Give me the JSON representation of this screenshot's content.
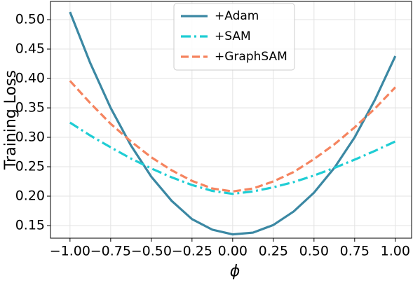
{
  "chart_data": {
    "type": "line",
    "xlabel": "ϕ",
    "ylabel": "Training Loss",
    "x": [
      -1,
      -0.875,
      -0.75,
      -0.625,
      -0.5,
      -0.375,
      -0.25,
      -0.125,
      0,
      0.125,
      0.25,
      0.375,
      0.5,
      0.625,
      0.75,
      0.875,
      1
    ],
    "series": [
      {
        "name": "+Adam",
        "color": "#3b88a3",
        "dash": "solid",
        "values": [
          0.513,
          0.426,
          0.35,
          0.286,
          0.233,
          0.192,
          0.161,
          0.143,
          0.135,
          0.138,
          0.151,
          0.174,
          0.206,
          0.248,
          0.3,
          0.364,
          0.438
        ]
      },
      {
        "name": "+SAM",
        "color": "#1fcdd4",
        "dash": "dashdot",
        "values": [
          0.325,
          0.303,
          0.283,
          0.264,
          0.247,
          0.232,
          0.219,
          0.209,
          0.204,
          0.208,
          0.215,
          0.224,
          0.235,
          0.248,
          0.262,
          0.277,
          0.293
        ]
      },
      {
        "name": "+GraphSAM",
        "color": "#f5845f",
        "dash": "dashed",
        "values": [
          0.396,
          0.358,
          0.323,
          0.293,
          0.266,
          0.244,
          0.226,
          0.213,
          0.208,
          0.213,
          0.225,
          0.241,
          0.263,
          0.288,
          0.317,
          0.349,
          0.385
        ]
      }
    ],
    "xlim": [
      -1.12,
      1.1
    ],
    "ylim": [
      0.1286,
      0.531
    ],
    "xticks": [
      {
        "value": -1,
        "label": "−1.00"
      },
      {
        "value": -0.75,
        "label": "−0.75"
      },
      {
        "value": -0.5,
        "label": "−0.50"
      },
      {
        "value": -0.25,
        "label": "−0.25"
      },
      {
        "value": 0,
        "label": "0.00"
      },
      {
        "value": 0.25,
        "label": "0.25"
      },
      {
        "value": 0.5,
        "label": "0.50"
      },
      {
        "value": 0.75,
        "label": "0.75"
      },
      {
        "value": 1,
        "label": "1.00"
      }
    ],
    "yticks": [
      {
        "value": 0.15,
        "label": "0.15"
      },
      {
        "value": 0.2,
        "label": "0.20"
      },
      {
        "value": 0.25,
        "label": "0.25"
      },
      {
        "value": 0.3,
        "label": "0.30"
      },
      {
        "value": 0.35,
        "label": "0.35"
      },
      {
        "value": 0.4,
        "label": "0.40"
      },
      {
        "value": 0.45,
        "label": "0.45"
      },
      {
        "value": 0.5,
        "label": "0.50"
      }
    ],
    "grid": true,
    "legend": "upper center"
  }
}
